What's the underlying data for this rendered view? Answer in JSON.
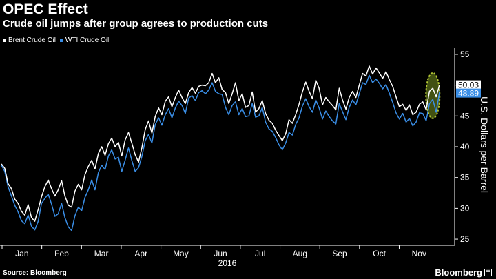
{
  "header": {
    "title": "OPEC Effect",
    "subtitle": "Crude oil jumps after group agrees to production cuts"
  },
  "legend": [
    {
      "label": "Brent Crude Oil",
      "color": "#ffffff"
    },
    {
      "label": "WTI Crude Oil",
      "color": "#3a8ee6"
    }
  ],
  "footer": {
    "source": "Source: Bloomberg",
    "brand": "Bloomberg"
  },
  "chart_data": {
    "type": "line",
    "ylabel": "U.S. Dollars per Barrel",
    "xlabel": "2016",
    "ylim": [
      24,
      56
    ],
    "yticks": [
      25,
      30,
      35,
      40,
      45,
      50,
      55
    ],
    "months": [
      "Jan",
      "Feb",
      "Mar",
      "Apr",
      "May",
      "Jun",
      "Jul",
      "Aug",
      "Sep",
      "Oct",
      "Nov"
    ],
    "year_label": "2016",
    "grid": false,
    "series": [
      {
        "name": "Brent Crude Oil",
        "color": "#ffffff",
        "last_value_label": "50.03",
        "values": [
          37.2,
          36.5,
          34.0,
          33.2,
          31.5,
          30.8,
          29.5,
          28.9,
          30.6,
          28.5,
          27.9,
          29.8,
          31.9,
          33.5,
          34.6,
          33.2,
          32.0,
          33.0,
          34.5,
          32.0,
          30.5,
          30.2,
          32.8,
          33.9,
          33.0,
          35.5,
          36.8,
          37.8,
          36.4,
          38.9,
          40.0,
          38.6,
          40.5,
          41.4,
          40.0,
          40.7,
          38.5,
          41.1,
          42.3,
          40.6,
          38.7,
          37.5,
          39.8,
          42.8,
          44.2,
          42.2,
          44.9,
          46.3,
          45.2,
          47.4,
          48.1,
          46.5,
          48.0,
          49.2,
          48.0,
          47.0,
          48.8,
          49.6,
          48.7,
          49.8,
          50.0,
          49.9,
          50.4,
          51.9,
          50.4,
          51.2,
          49.3,
          48.8,
          47.0,
          48.6,
          50.4,
          47.5,
          48.6,
          46.4,
          46.7,
          48.9,
          45.6,
          46.2,
          47.5,
          45.4,
          44.3,
          43.8,
          42.7,
          41.8,
          41.0,
          42.1,
          44.4,
          43.8,
          45.2,
          46.9,
          48.9,
          50.5,
          49.0,
          47.8,
          50.8,
          49.5,
          46.8,
          48.0,
          47.3,
          46.7,
          46.0,
          49.5,
          47.6,
          46.1,
          48.0,
          49.0,
          48.0,
          50.0,
          51.9,
          51.5,
          53.1,
          51.8,
          52.8,
          52.0,
          51.1,
          52.2,
          50.9,
          49.8,
          48.1,
          46.5,
          46.9,
          45.9,
          46.8,
          45.2,
          45.6,
          46.9,
          47.3,
          46.0,
          49.0,
          49.5,
          48.1,
          50.0
        ]
      },
      {
        "name": "WTI Crude Oil",
        "color": "#3a8ee6",
        "last_value_label": "48.89",
        "values": [
          37.0,
          36.0,
          33.5,
          32.0,
          30.5,
          29.4,
          28.0,
          27.5,
          28.9,
          27.1,
          26.5,
          27.9,
          30.8,
          31.6,
          32.3,
          30.7,
          28.7,
          29.1,
          30.8,
          28.5,
          27.0,
          26.4,
          28.8,
          30.2,
          29.6,
          31.8,
          33.0,
          34.6,
          33.0,
          35.8,
          37.0,
          36.3,
          38.5,
          39.5,
          38.0,
          38.3,
          36.0,
          37.8,
          39.8,
          37.8,
          36.0,
          36.6,
          38.4,
          41.0,
          42.0,
          40.6,
          43.6,
          44.7,
          43.5,
          45.2,
          46.2,
          44.7,
          46.3,
          47.4,
          46.7,
          45.4,
          47.9,
          48.3,
          47.5,
          48.8,
          49.1,
          48.6,
          49.2,
          50.4,
          49.0,
          48.6,
          48.5,
          46.4,
          45.2,
          46.7,
          47.3,
          45.2,
          46.2,
          44.9,
          45.0,
          47.0,
          44.8,
          45.0,
          46.4,
          44.0,
          42.9,
          42.5,
          41.5,
          40.3,
          39.5,
          40.6,
          42.3,
          41.9,
          43.6,
          44.7,
          46.6,
          47.8,
          46.5,
          45.6,
          47.6,
          46.3,
          44.5,
          45.8,
          44.9,
          44.2,
          43.7,
          47.0,
          45.7,
          44.4,
          46.4,
          47.6,
          46.8,
          48.6,
          50.4,
          50.1,
          51.6,
          50.4,
          51.0,
          50.3,
          49.4,
          50.1,
          48.7,
          47.2,
          45.5,
          44.5,
          45.4,
          44.0,
          44.6,
          43.4,
          44.0,
          45.5,
          45.4,
          44.2,
          47.0,
          47.7,
          45.6,
          48.9
        ]
      }
    ],
    "annotation": {
      "type": "highlight-ellipse",
      "color": "#c8dd3c",
      "fill": "#4a5a14",
      "target": "final rally"
    }
  }
}
